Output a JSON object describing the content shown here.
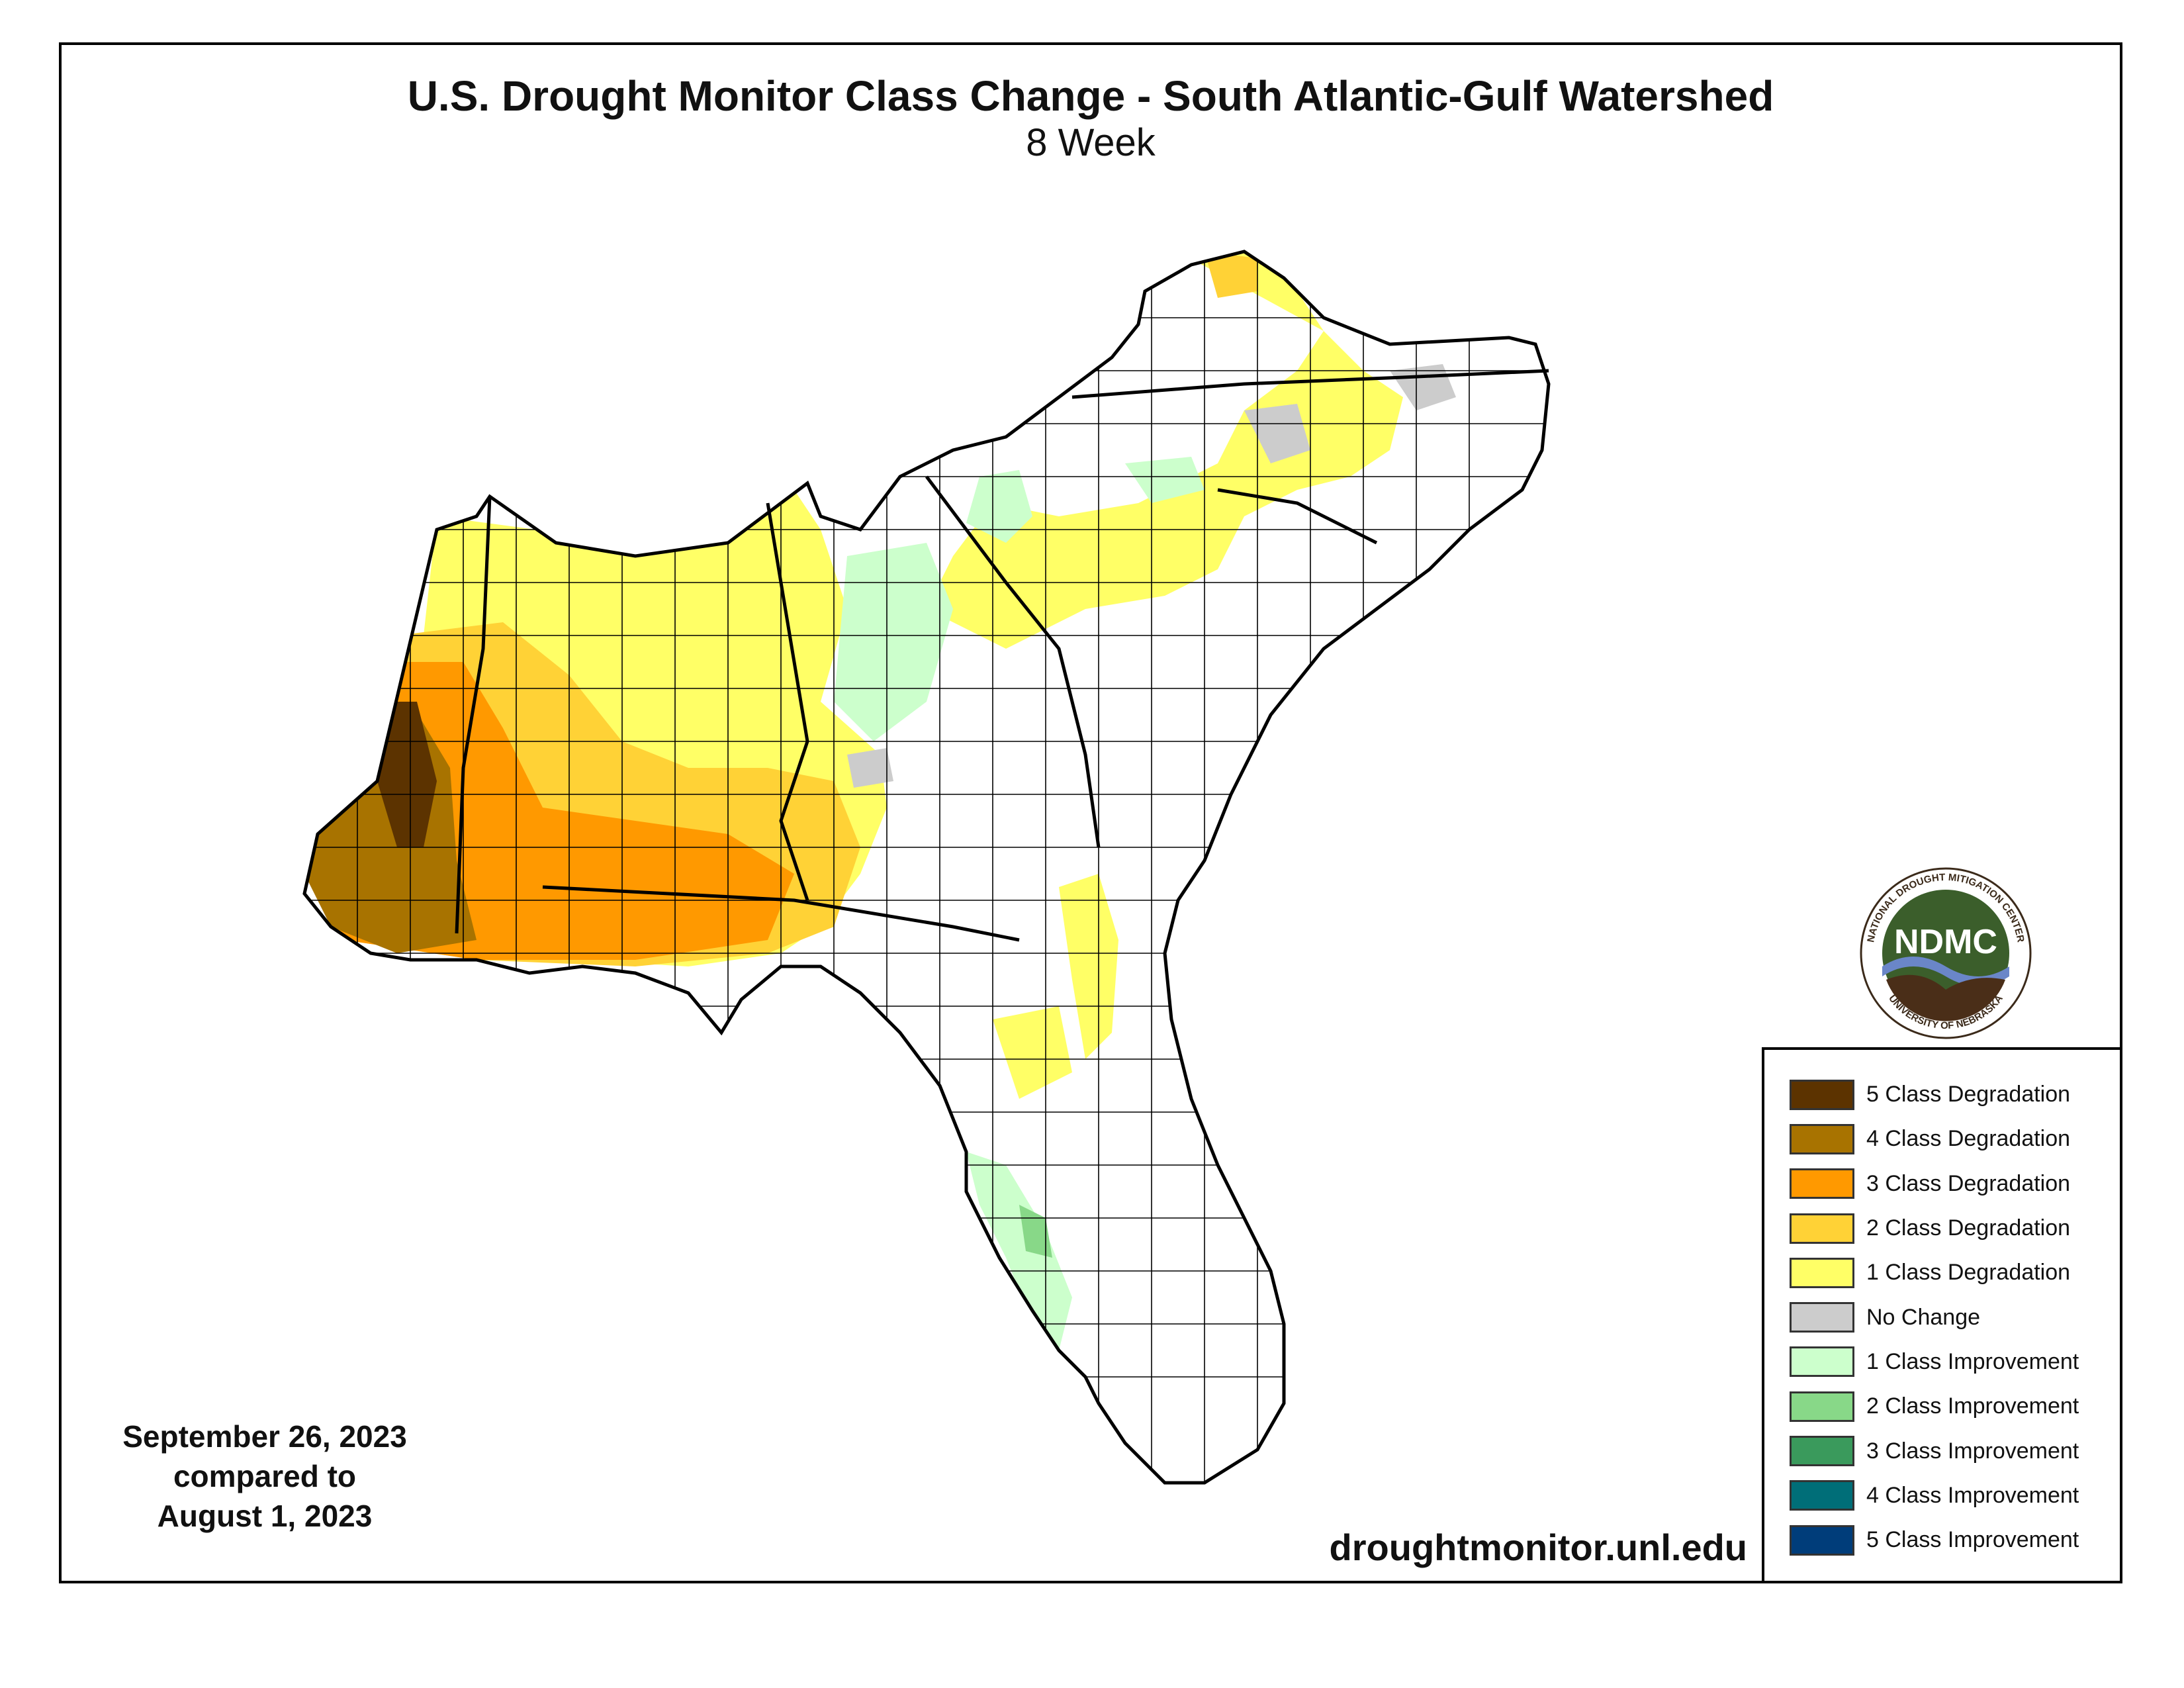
{
  "title": "U.S. Drought Monitor Class Change - South Atlantic-Gulf Watershed",
  "subtitle": "8 Week",
  "date_lines": [
    "September 26, 2023",
    "compared to",
    "August 1, 2023"
  ],
  "url": "droughtmonitor.unl.edu",
  "logo": {
    "text": "NDMC",
    "ring_top": "NATIONAL DROUGHT MITIGATION CENTER",
    "ring_bottom": "UNIVERSITY OF NEBRASKA"
  },
  "legend": [
    {
      "label": "5 Class Degradation",
      "color": "#5c3300"
    },
    {
      "label": "4 Class Degradation",
      "color": "#a87300"
    },
    {
      "label": "3 Class Degradation",
      "color": "#ff9900"
    },
    {
      "label": "2 Class Degradation",
      "color": "#ffd236"
    },
    {
      "label": "1 Class Degradation",
      "color": "#ffff66"
    },
    {
      "label": "No Change",
      "color": "#cccccc"
    },
    {
      "label": "1 Class Improvement",
      "color": "#ccffcc"
    },
    {
      "label": "2 Class Improvement",
      "color": "#88d888"
    },
    {
      "label": "3 Class Improvement",
      "color": "#3a9a5c"
    },
    {
      "label": "4 Class Improvement",
      "color": "#006e78"
    },
    {
      "label": "5 Class Improvement",
      "color": "#003d7a"
    }
  ]
}
